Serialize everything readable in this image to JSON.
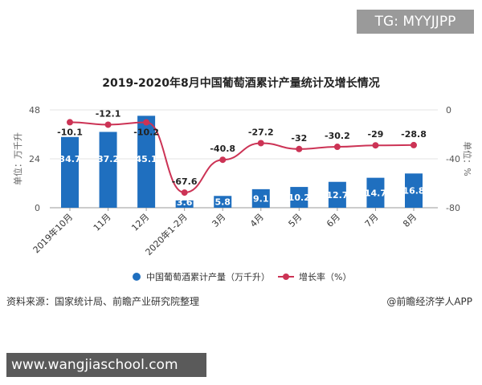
{
  "watermark_top": "TG: MYYJJPP",
  "watermark_bottom": "www.wangjiaschool.com",
  "source": "资料来源：国家统计局、前瞻产业研究院整理",
  "credit": "@前瞻经济学人APP",
  "colors": {
    "bar": "#1f6fbf",
    "line": "#cc3355"
  },
  "chart_data": {
    "type": "bar+line",
    "title": "2019-2020年8月中国葡萄酒累计产量统计及增长情况",
    "categories": [
      "2019年10月",
      "11月",
      "12月",
      "2020年1-2月",
      "3月",
      "4月",
      "5月",
      "6月",
      "7月",
      "8月"
    ],
    "series": [
      {
        "name": "中国葡萄酒累计产量（万千升）",
        "type": "bar",
        "axis": "left",
        "values": [
          34.7,
          37.2,
          45.1,
          3.6,
          5.8,
          9.1,
          10.2,
          12.7,
          14.7,
          16.8
        ]
      },
      {
        "name": "增长率（%）",
        "type": "line",
        "axis": "right",
        "values": [
          -10.1,
          -12.1,
          -10.2,
          -67.6,
          -40.8,
          -27.2,
          -32,
          -30.2,
          -29,
          -28.8
        ]
      }
    ],
    "ylabel_left": "单位：万千升",
    "ylabel_right": "单位：%",
    "ylim_left": [
      0,
      48
    ],
    "yticks_left": [
      0,
      24,
      48
    ],
    "ylim_right": [
      -80,
      0
    ],
    "yticks_right": [
      0,
      -40,
      -80
    ],
    "grid": true,
    "legend": "bottom"
  }
}
